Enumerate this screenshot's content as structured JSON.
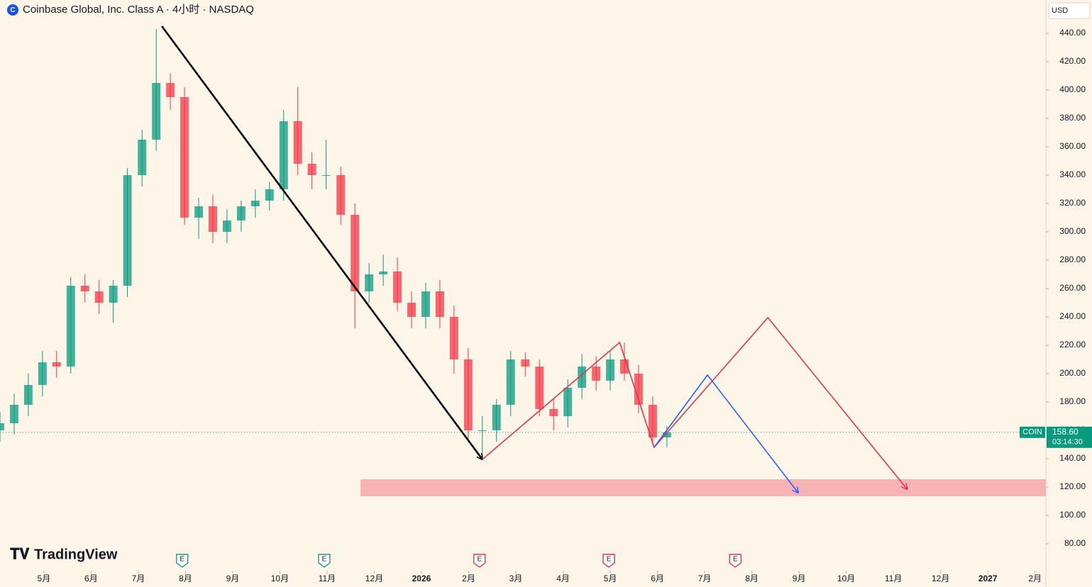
{
  "chart_data": {
    "type": "candlestick",
    "title": "Coinbase Global, Inc. Class A · 4小时 · NASDAQ",
    "currency": "USD",
    "brand": "TradingView",
    "x": [
      -0.93,
      -0.63,
      -0.33,
      -0.03,
      0.27,
      0.57,
      0.87,
      1.17,
      1.47,
      1.77,
      2.08,
      2.38,
      2.68,
      2.98,
      3.28,
      3.58,
      3.88,
      4.18,
      4.48,
      4.78,
      5.08,
      5.38,
      5.68,
      5.98,
      6.29,
      6.59,
      6.89,
      7.19,
      7.49,
      7.79,
      8.09,
      8.39,
      8.69,
      8.99,
      9.29,
      9.59,
      9.89,
      10.2,
      10.5,
      10.8,
      11.1,
      11.4,
      11.7,
      12,
      12.3,
      12.6,
      12.9,
      13.2
    ],
    "open": [
      160,
      165,
      178,
      192,
      208,
      205,
      262,
      258,
      250,
      262,
      340,
      365,
      405,
      395,
      310,
      318,
      300,
      308,
      318,
      322,
      330,
      378,
      348,
      340,
      340,
      312,
      258,
      270,
      272,
      250,
      240,
      258,
      240,
      210,
      160,
      160,
      178,
      210,
      205,
      175,
      170,
      190,
      205,
      195,
      210,
      200,
      178,
      155
    ],
    "high": [
      173,
      186,
      200,
      216,
      216,
      268,
      270,
      266,
      266,
      345,
      372,
      443,
      412,
      402,
      324,
      326,
      316,
      322,
      330,
      335,
      386,
      402,
      356,
      365,
      346,
      320,
      278,
      284,
      282,
      258,
      264,
      266,
      248,
      218,
      170,
      182,
      216,
      215,
      210,
      182,
      196,
      214,
      212,
      216,
      222,
      206,
      184,
      163
    ],
    "low": [
      152,
      157,
      170,
      184,
      197,
      200,
      250,
      242,
      236,
      254,
      332,
      357,
      386,
      305,
      295,
      292,
      292,
      300,
      310,
      315,
      322,
      340,
      330,
      330,
      305,
      232,
      250,
      262,
      244,
      232,
      232,
      232,
      200,
      152,
      140,
      152,
      170,
      198,
      170,
      160,
      162,
      182,
      188,
      188,
      195,
      172,
      150,
      148
    ],
    "close": [
      165,
      178,
      192,
      208,
      205,
      262,
      258,
      250,
      262,
      340,
      365,
      405,
      395,
      310,
      318,
      300,
      308,
      318,
      322,
      330,
      378,
      348,
      340,
      340,
      312,
      258,
      270,
      272,
      250,
      240,
      258,
      240,
      210,
      160,
      160,
      178,
      210,
      205,
      175,
      170,
      190,
      205,
      195,
      210,
      200,
      178,
      155,
      158.6
    ],
    "up_color": "#089981",
    "down_color": "#f23645",
    "xlim": [
      -0.93,
      21.23
    ],
    "ylim": [
      61,
      463.5
    ],
    "xticks": [
      {
        "value": 0,
        "label": "5月"
      },
      {
        "value": 1,
        "label": "6月"
      },
      {
        "value": 2,
        "label": "7月"
      },
      {
        "value": 3,
        "label": "8月"
      },
      {
        "value": 4,
        "label": "9月"
      },
      {
        "value": 5,
        "label": "10月"
      },
      {
        "value": 6,
        "label": "11月"
      },
      {
        "value": 7,
        "label": "12月"
      },
      {
        "value": 8,
        "label": "2026"
      },
      {
        "value": 9,
        "label": "2月"
      },
      {
        "value": 10,
        "label": "3月"
      },
      {
        "value": 11,
        "label": "4月"
      },
      {
        "value": 12,
        "label": "5月"
      },
      {
        "value": 13,
        "label": "6月"
      },
      {
        "value": 14,
        "label": "7月"
      },
      {
        "value": 15,
        "label": "8月"
      },
      {
        "value": 16,
        "label": "9月"
      },
      {
        "value": 17,
        "label": "10月"
      },
      {
        "value": 18,
        "label": "11月"
      },
      {
        "value": 19,
        "label": "12月"
      },
      {
        "value": 20,
        "label": "2027"
      },
      {
        "value": 21,
        "label": "2月"
      }
    ],
    "yticks": [
      {
        "value": 80,
        "label": "80.00"
      },
      {
        "value": 100,
        "label": "100.00"
      },
      {
        "value": 120,
        "label": "120.00"
      },
      {
        "value": 140,
        "label": "140.00"
      },
      {
        "value": 160,
        "label": "160.00"
      },
      {
        "value": 180,
        "label": "180.00"
      },
      {
        "value": 200,
        "label": "200.00"
      },
      {
        "value": 220,
        "label": "220.00"
      },
      {
        "value": 240,
        "label": "240.00"
      },
      {
        "value": 260,
        "label": "260.00"
      },
      {
        "value": 280,
        "label": "280.00"
      },
      {
        "value": 300,
        "label": "300.00"
      },
      {
        "value": 320,
        "label": "320.00"
      },
      {
        "value": 340,
        "label": "340.00"
      },
      {
        "value": 360,
        "label": "360.00"
      },
      {
        "value": 380,
        "label": "380.00"
      },
      {
        "value": 400,
        "label": "400.00"
      },
      {
        "value": 420,
        "label": "420.00"
      },
      {
        "value": 440,
        "label": "440.00"
      }
    ],
    "last_price": {
      "symbol": "COIN",
      "value": 158.6,
      "label": "158.60",
      "countdown": "03:14:30",
      "color": "#089981"
    },
    "zone": {
      "x": [
        6.71,
        21.23
      ],
      "y": [
        113.5,
        125.5
      ],
      "color": "#f7b3b3"
    },
    "drawings": [
      {
        "color": "#000000",
        "x": [
          2.5,
          9.29
        ],
        "y": [
          445,
          139.5
        ]
      },
      {
        "color": "#e0364f",
        "x": [
          9.29,
          12.2,
          12.93,
          15.34,
          18.29
        ],
        "y": [
          139.5,
          222,
          148,
          239.5,
          118.5
        ]
      },
      {
        "color": "#2962ff",
        "x": [
          12.93,
          14.06,
          15.98
        ],
        "y": [
          148,
          199,
          116
        ]
      }
    ],
    "earnings": [
      {
        "x": 2.93,
        "label": "E"
      },
      {
        "x": 5.94,
        "label": "E"
      },
      {
        "x": 9.23,
        "label": "E"
      },
      {
        "x": 11.97,
        "label": "E"
      },
      {
        "x": 14.65,
        "label": "E"
      }
    ]
  }
}
